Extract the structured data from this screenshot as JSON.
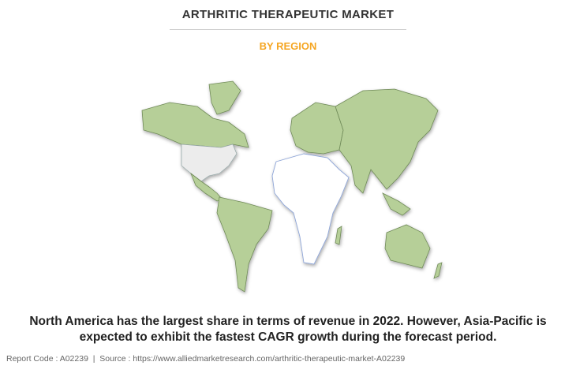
{
  "header": {
    "title": "ARTHRITIC THERAPEUTIC MARKET",
    "subtitle": "BY REGION"
  },
  "description": "North America has the largest share in terms of revenue in 2022. However, Asia-Pacific is expected to exhibit the fastest CAGR growth during the forecast period.",
  "footer": "Report Code : A02239  |  Source : https://www.alliedmarketresearch.com/arthritic-therapeutic-market-A02239"
}
